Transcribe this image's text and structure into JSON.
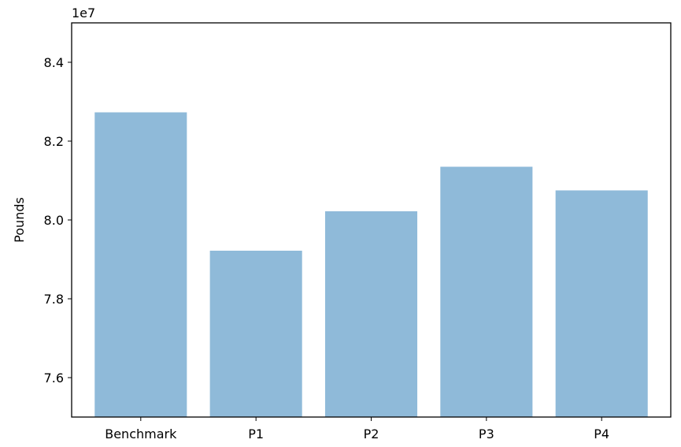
{
  "chart_data": {
    "type": "bar",
    "categories": [
      "Benchmark",
      "P1",
      "P2",
      "P3",
      "P4"
    ],
    "values": [
      82730000,
      79220000,
      80220000,
      81350000,
      80750000
    ],
    "title": "",
    "xlabel": "",
    "ylabel": "Pounds",
    "scale_label": "1e7",
    "ylim": [
      75000000,
      85000000
    ],
    "yticks": [
      76000000,
      78000000,
      80000000,
      82000000,
      84000000
    ],
    "ytick_labels": [
      "7.6",
      "7.8",
      "8.0",
      "8.2",
      "8.4"
    ],
    "bar_color": "#8fbad9",
    "grid": false,
    "legend": "none"
  }
}
